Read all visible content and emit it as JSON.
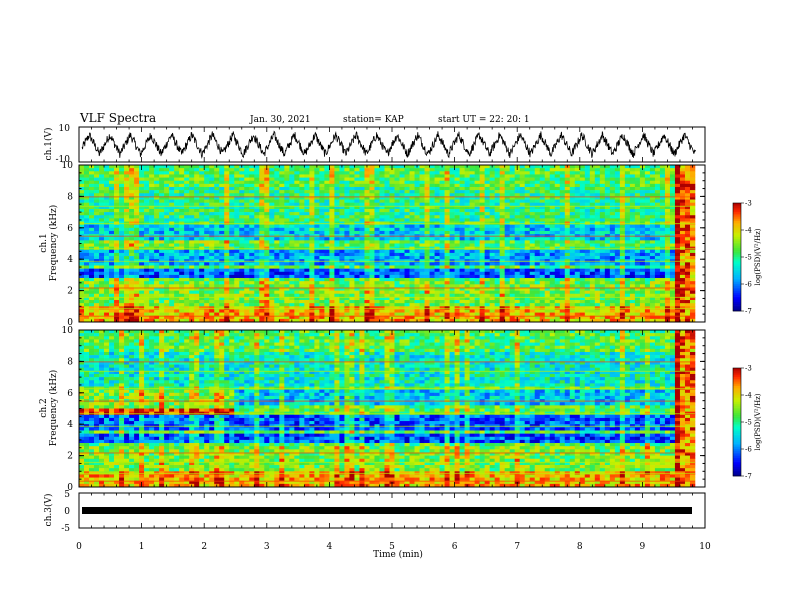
{
  "header": {
    "title": "VLF Spectra",
    "date": "Jan. 30, 2021",
    "station": "station= KAP",
    "start": "start  UT =   22: 20: 1"
  },
  "chart_data": [
    {
      "type": "line",
      "id": "ch1-waveform",
      "ylabel": "ch.1(V)",
      "ylim": [
        -10,
        10
      ],
      "yticks": [
        "10",
        "-10"
      ],
      "xlim": [
        0,
        10
      ],
      "note_shape": "sawtooth oscillation of about 30 cycles over 10 min, amplitude about 8 V with noise"
    },
    {
      "type": "heatmap",
      "id": "ch1-spectrogram",
      "ylabel": "ch.1\nFrequency (kHz)",
      "ylim": [
        0,
        10
      ],
      "xlim": [
        0,
        10
      ],
      "yticks": [
        "0",
        "2",
        "4",
        "6",
        "8",
        "10"
      ],
      "colorbar": {
        "label": "log(PSD)(V²/Hz)",
        "range": [
          -7,
          -3
        ],
        "ticks": [
          "-3",
          "-4",
          "-5",
          "-6",
          "-7"
        ]
      }
    },
    {
      "type": "heatmap",
      "id": "ch2-spectrogram",
      "ylabel": "ch.2\nFrequency (kHz)",
      "ylim": [
        0,
        10
      ],
      "xlim": [
        0,
        10
      ],
      "yticks": [
        "0",
        "2",
        "4",
        "6",
        "8",
        "10"
      ],
      "colorbar": {
        "label": "log(PSD)(V²/Hz)",
        "range": [
          -7,
          -3
        ],
        "ticks": [
          "-3",
          "-4",
          "-5",
          "-6",
          "-7"
        ]
      }
    },
    {
      "type": "line",
      "id": "ch3-waveform",
      "ylabel": "ch.3(V)",
      "ylim": [
        -5,
        5
      ],
      "yticks": [
        "5",
        "0",
        "-5"
      ],
      "xlim": [
        0,
        10
      ],
      "xlabel": "Time  (min)",
      "xticks": [
        "0",
        "1",
        "2",
        "3",
        "4",
        "5",
        "6",
        "7",
        "8",
        "9",
        "10"
      ]
    }
  ]
}
